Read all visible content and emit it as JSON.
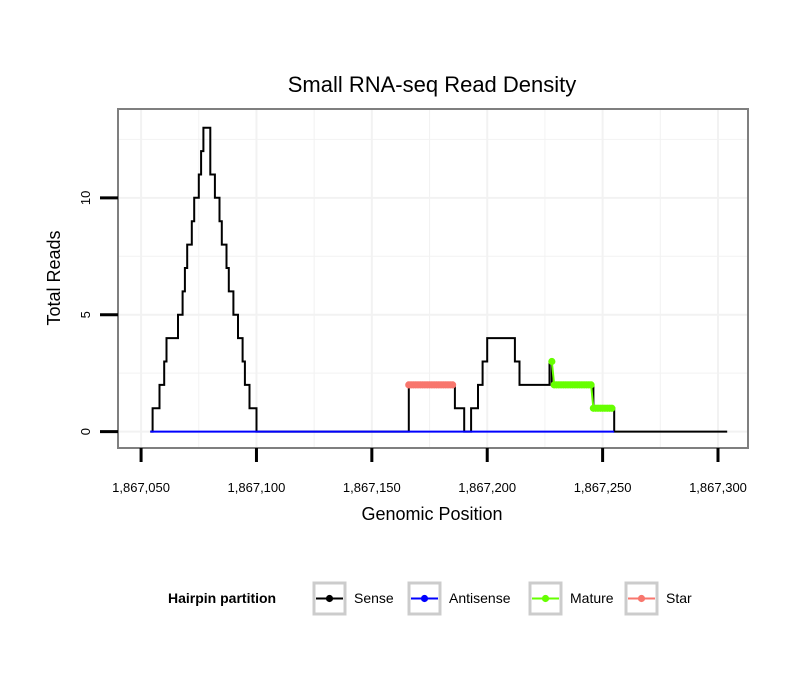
{
  "chart_data": {
    "type": "line",
    "title": "Small RNA-seq Read Density",
    "xlabel": "Genomic Position",
    "ylabel": "Total Reads",
    "xlim": [
      1867040,
      1867313
    ],
    "ylim": [
      -0.7,
      13.8
    ],
    "x_ticks": [
      1867050,
      1867100,
      1867150,
      1867200,
      1867250,
      1867300
    ],
    "x_tick_labels": [
      "1,867,050",
      "1,867,100",
      "1,867,150",
      "1,867,200",
      "1,867,250",
      "1,867,300"
    ],
    "y_ticks": [
      0,
      5,
      10
    ],
    "y_tick_labels": [
      "0",
      "5",
      "10"
    ],
    "grid": true,
    "legend": {
      "title": "Hairpin partition",
      "position": "bottom",
      "entries": [
        {
          "name": "Sense",
          "color": "#000000"
        },
        {
          "name": "Antisense",
          "color": "#0000ff"
        },
        {
          "name": "Mature",
          "color": "#66ff00"
        },
        {
          "name": "Star",
          "color": "#f8766d"
        }
      ]
    },
    "series": [
      {
        "name": "Sense",
        "color": "#000000",
        "x": [
          1867054,
          1867055,
          1867056,
          1867057,
          1867058,
          1867059,
          1867060,
          1867061,
          1867065,
          1867066,
          1867067,
          1867068,
          1867069,
          1867070,
          1867071,
          1867072,
          1867073,
          1867074,
          1867075,
          1867076,
          1867077,
          1867078,
          1867079,
          1867080,
          1867081,
          1867082,
          1867083,
          1867084,
          1867085,
          1867086,
          1867087,
          1867088,
          1867089,
          1867090,
          1867091,
          1867092,
          1867093,
          1867094,
          1867095,
          1867096,
          1867097,
          1867098,
          1867099,
          1867100,
          1867101,
          1867102,
          1867103,
          1867165,
          1867166,
          1867167,
          1867185,
          1867186,
          1867187,
          1867188,
          1867189,
          1867190,
          1867191,
          1867192,
          1867193,
          1867194,
          1867195,
          1867196,
          1867197,
          1867198,
          1867199,
          1867200,
          1867201,
          1867202,
          1867203,
          1867208,
          1867211,
          1867212,
          1867213,
          1867214,
          1867215,
          1867216,
          1867218,
          1867222,
          1867227,
          1867228,
          1867229,
          1867230,
          1867235,
          1867245,
          1867246,
          1867247,
          1867248,
          1867254,
          1867255,
          1867304
        ],
        "y": [
          0,
          1,
          1,
          1,
          2,
          2,
          3,
          4,
          4,
          5,
          5,
          6,
          7,
          8,
          8,
          9,
          10,
          10,
          11,
          12,
          13,
          13,
          13,
          11,
          11,
          10,
          10,
          9,
          8,
          8,
          7,
          6,
          6,
          5,
          5,
          4,
          4,
          3,
          2,
          2,
          1,
          1,
          1,
          0,
          0,
          0,
          0,
          0,
          2,
          2,
          2,
          1,
          1,
          1,
          1,
          0,
          0,
          0,
          1,
          1,
          1,
          2,
          2,
          3,
          3,
          4,
          4,
          4,
          4,
          4,
          4,
          3,
          3,
          2,
          2,
          2,
          2,
          2,
          3,
          2,
          2,
          2,
          2,
          2,
          1,
          1,
          1,
          1,
          0,
          0
        ]
      },
      {
        "name": "Antisense",
        "color": "#0000ff",
        "x": [
          1867054,
          1867255
        ],
        "y": [
          0,
          0
        ]
      },
      {
        "name": "Star",
        "color": "#f8766d",
        "x": [
          1867166,
          1867167,
          1867168,
          1867169,
          1867170,
          1867171,
          1867172,
          1867173,
          1867174,
          1867175,
          1867176,
          1867177,
          1867178,
          1867179,
          1867180,
          1867181,
          1867182,
          1867183,
          1867184,
          1867185
        ],
        "y": [
          2,
          2,
          2,
          2,
          2,
          2,
          2,
          2,
          2,
          2,
          2,
          2,
          2,
          2,
          2,
          2,
          2,
          2,
          2,
          2
        ]
      },
      {
        "name": "Mature",
        "color": "#66ff00",
        "x": [
          1867228,
          1867229,
          1867230,
          1867231,
          1867232,
          1867233,
          1867234,
          1867235,
          1867236,
          1867237,
          1867238,
          1867239,
          1867240,
          1867241,
          1867242,
          1867243,
          1867244,
          1867245,
          1867246,
          1867247,
          1867248,
          1867249,
          1867250,
          1867251,
          1867252,
          1867253,
          1867254
        ],
        "y": [
          3,
          2,
          2,
          2,
          2,
          2,
          2,
          2,
          2,
          2,
          2,
          2,
          2,
          2,
          2,
          2,
          2,
          2,
          1,
          1,
          1,
          1,
          1,
          1,
          1,
          1,
          1
        ]
      }
    ]
  }
}
